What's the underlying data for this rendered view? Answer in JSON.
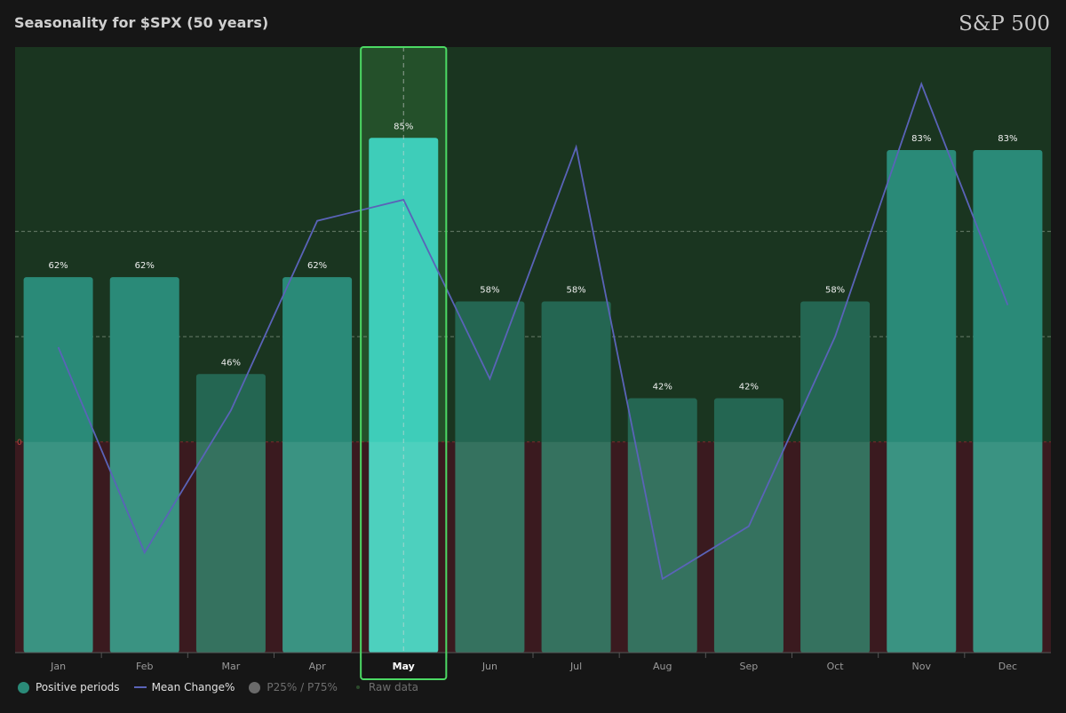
{
  "header": {
    "title": "Seasonality for $SPX (50 years)",
    "watermark": "S&P 500"
  },
  "legend": {
    "positive_periods": "Positive periods",
    "mean_change": "Mean Change%",
    "percentiles": "P25% / P75%",
    "raw_data": "Raw data"
  },
  "colors": {
    "bar_high": "#2a8a78",
    "bar_low": "#246652",
    "bar_selected": "#3ecdb9",
    "mean_line": "#5a63b8",
    "positive_bg": "#1a3520",
    "negative_bg": "#3a1a1f",
    "highlight_border": "#4cd964"
  },
  "chart_data": {
    "type": "bar",
    "categories": [
      "Jan",
      "Feb",
      "Mar",
      "Apr",
      "May",
      "Jun",
      "Jul",
      "Aug",
      "Sep",
      "Oct",
      "Nov",
      "Dec"
    ],
    "series": [
      {
        "name": "Positive periods",
        "values": [
          62,
          62,
          46,
          62,
          85,
          58,
          58,
          42,
          42,
          58,
          83,
          83
        ]
      },
      {
        "name": "Mean Change%",
        "values": [
          0.9,
          -1.05,
          0.3,
          2.1,
          2.3,
          0.6,
          2.8,
          -1.3,
          -0.8,
          1.0,
          3.4,
          1.3
        ]
      }
    ],
    "data_labels": [
      "62%",
      "62%",
      "46%",
      "62%",
      "85%",
      "58%",
      "58%",
      "42%",
      "42%",
      "58%",
      "83%",
      "83%"
    ],
    "zero_label": "0",
    "selected_category": "May",
    "bar_ylim": [
      0,
      100
    ],
    "line_ylim": [
      -2.0,
      3.75
    ],
    "grid": true
  }
}
